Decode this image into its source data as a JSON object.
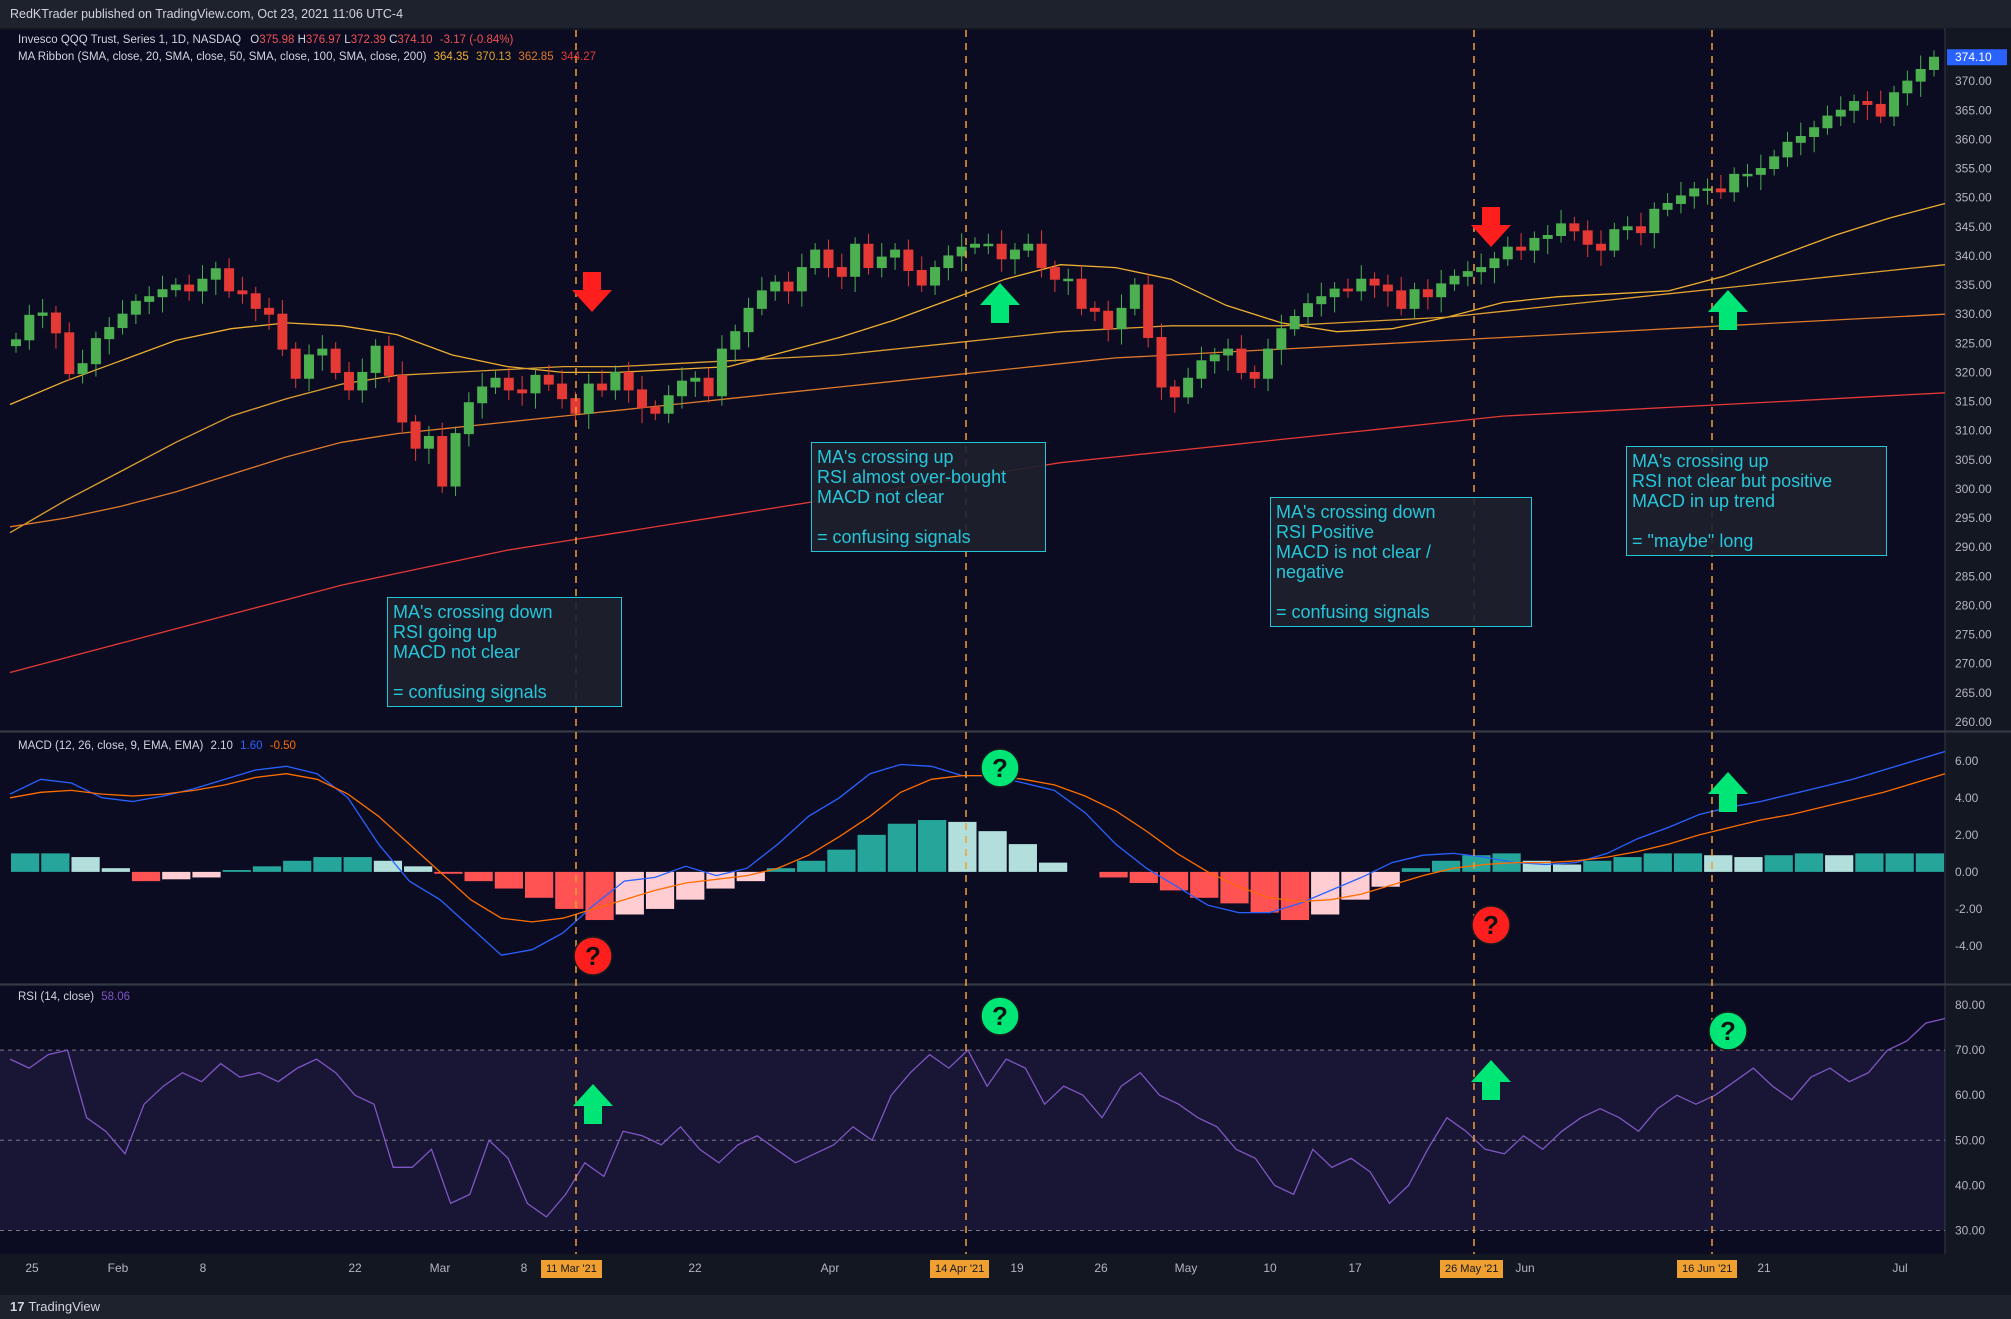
{
  "header": {
    "publisher": "RedKTrader published on TradingView.com, Oct 23, 2021 11:06 UTC-4"
  },
  "footer": {
    "brand": "TradingView"
  },
  "legend": {
    "main": {
      "title": "Invesco QQQ Trust, Series 1, 1D, NASDAQ",
      "o_label": "O",
      "o": "375.98",
      "h_label": "H",
      "h": "376.97",
      "l_label": "L",
      "l": "372.39",
      "c_label": "C",
      "c": "374.10",
      "chg": "-3.17 (-0.84%)"
    },
    "ribbon": {
      "title": "MA Ribbon (SMA, close, 20, SMA, close, 50, SMA, close, 100, SMA, close, 200)",
      "v1": "364.35",
      "v2": "370.13",
      "v3": "362.85",
      "v4": "344.27"
    },
    "macd": {
      "title": "MACD (12, 26, close, 9, EMA, EMA)",
      "hist": "2.10",
      "macd": "1.60",
      "signal": "-0.50"
    },
    "rsi": {
      "title": "RSI (14, close)",
      "value": "58.06"
    }
  },
  "notes": [
    {
      "text": "MA's crossing down\nRSI going up\nMACD not clear\n\n= confusing signals"
    },
    {
      "text": "MA's crossing up\nRSI almost over-bought\nMACD not clear\n\n= confusing signals"
    },
    {
      "text": "MA's crossing down\nRSI Positive\nMACD is not clear /\nnegative\n\n= confusing signals"
    },
    {
      "text": "MA's crossing up\nRSI not clear but positive\nMACD in up trend\n\n= \"maybe\" long"
    }
  ],
  "date_badges": [
    "11 Mar '21",
    "14 Apr '21",
    "26 May '21",
    "16 Jun '21"
  ],
  "colors": {
    "bull": "#4caf50",
    "bear": "#e53935",
    "ma20": "#f0b030",
    "ma50": "#e0a030",
    "ma100": "#e07a2a",
    "ma200": "#e53935",
    "macd": "#2962ff",
    "signal": "#ff6d00",
    "rsi": "#7e57c2",
    "note": "#26c6da",
    "vline": "#f0a030"
  },
  "chart_data": [
    {
      "type": "candlestick",
      "name": "Invesco QQQ Trust, Series 1, 1D, NASDAQ",
      "ylim": [
        260,
        375
      ],
      "y_ticks": [
        "260.00",
        "265.00",
        "270.00",
        "275.00",
        "280.00",
        "285.00",
        "290.00",
        "295.00",
        "300.00",
        "305.00",
        "310.00",
        "315.00",
        "320.00",
        "325.00",
        "330.00",
        "335.00",
        "340.00",
        "345.00",
        "350.00",
        "355.00",
        "360.00",
        "365.00",
        "370.00"
      ],
      "price_tag": "374.10",
      "x_tick_labels": [
        "25",
        "Feb",
        "8",
        "22",
        "Mar",
        "8",
        "22",
        "Apr",
        "19",
        "26",
        "May",
        "10",
        "17",
        "Jun",
        "21",
        "Jul"
      ],
      "closes": [
        325.6,
        329.8,
        330.2,
        326.8,
        319.8,
        321.5,
        325.8,
        327.7,
        330.0,
        332.2,
        333.0,
        334.2,
        335.0,
        334.0,
        336.0,
        337.8,
        334.0,
        333.5,
        331.0,
        330.0,
        324.0,
        319.0,
        323.0,
        324.0,
        320.0,
        317.0,
        320.0,
        324.5,
        319.5,
        311.5,
        307.0,
        309.0,
        300.5,
        309.5,
        314.8,
        317.5,
        319.0,
        317.0,
        316.5,
        319.5,
        318.0,
        315.5,
        313.0,
        318.0,
        317.0,
        320.0,
        317.0,
        314.0,
        313.0,
        316.0,
        318.5,
        319.0,
        316.0,
        324.0,
        327.0,
        331.0,
        334.0,
        335.5,
        334.0,
        338.0,
        341.0,
        338.0,
        336.5,
        342.0,
        338.0,
        339.8,
        341.0,
        337.5,
        335.0,
        338.0,
        340.0,
        341.5,
        342.0,
        342.0,
        339.5,
        341.0,
        342.0,
        338.0,
        336.0,
        336.0,
        331.0,
        330.5,
        327.5,
        331.0,
        335.0,
        326.0,
        317.5,
        315.8,
        319.0,
        322.0,
        323.0,
        324.0,
        320.0,
        319.0,
        324.0,
        327.5,
        329.6,
        331.8,
        333.0,
        334.3,
        334.0,
        336.0,
        335.0,
        334.0,
        331.0,
        334.2,
        333.0,
        335.2,
        336.5,
        337.3,
        338.0,
        339.5,
        341.5,
        341.0,
        343.0,
        343.5,
        345.5,
        344.3,
        342.0,
        341.0,
        344.5,
        345.0,
        344.0,
        348.0,
        349.0,
        350.3,
        351.5,
        351.5,
        351.0,
        354.0,
        354.0,
        355.0,
        357.0,
        359.5,
        360.5,
        362.0,
        364.0,
        365.0,
        366.5,
        366.0,
        364.0,
        368.0,
        370.0,
        372.0,
        374.1
      ]
    },
    {
      "type": "line",
      "name": "MA Ribbon",
      "series": [
        {
          "name": "SMA 20",
          "values": [
            314.5,
            318.5,
            322.0,
            325.5,
            327.5,
            328.5,
            328.0,
            326.5,
            323.0,
            321.0,
            320.0,
            320.0,
            320.5,
            321.0,
            323.5,
            326.0,
            329.0,
            332.5,
            336.0,
            338.5,
            338.0,
            336.0,
            331.5,
            328.5,
            327.0,
            327.5,
            329.5,
            332.0,
            333.0,
            333.5,
            334.0,
            336.5,
            340.0,
            343.5,
            346.5,
            349.0
          ]
        },
        {
          "name": "SMA 50",
          "values": [
            292.5,
            298.0,
            303.0,
            308.0,
            312.5,
            315.5,
            318.0,
            319.5,
            320.0,
            320.5,
            321.0,
            321.0,
            321.5,
            322.0,
            322.5,
            323.0,
            324.0,
            325.0,
            326.0,
            327.0,
            327.5,
            328.0,
            328.0,
            328.0,
            328.5,
            329.0,
            329.5,
            330.5,
            331.5,
            332.5,
            333.5,
            334.5,
            335.5,
            336.5,
            337.5,
            338.5
          ]
        },
        {
          "name": "SMA 100",
          "values": [
            293.5,
            295.0,
            297.0,
            299.5,
            302.5,
            305.5,
            308.0,
            309.5,
            310.5,
            311.5,
            312.5,
            313.5,
            314.5,
            315.5,
            316.5,
            317.5,
            318.5,
            319.5,
            320.5,
            321.5,
            322.5,
            323.0,
            323.5,
            324.0,
            324.5,
            325.0,
            325.5,
            326.0,
            326.5,
            327.0,
            327.5,
            328.0,
            328.5,
            329.0,
            329.5,
            330.0
          ]
        },
        {
          "name": "SMA 200",
          "values": [
            268.5,
            271.0,
            273.5,
            276.0,
            278.5,
            281.0,
            283.5,
            285.5,
            287.5,
            289.5,
            291.0,
            292.5,
            294.0,
            295.5,
            297.0,
            298.5,
            300.0,
            301.5,
            303.0,
            304.5,
            305.5,
            306.5,
            307.5,
            308.5,
            309.5,
            310.5,
            311.5,
            312.5,
            313.0,
            313.5,
            314.0,
            314.5,
            315.0,
            315.5,
            316.0,
            316.5
          ]
        }
      ]
    },
    {
      "type": "line",
      "name": "MACD (12, 26, close, 9, EMA, EMA)",
      "ylim": [
        -6,
        7.5
      ],
      "y_ticks": [
        "-4.00",
        "-2.00",
        "0.00",
        "2.00",
        "4.00",
        "6.00"
      ],
      "series": [
        {
          "name": "MACD",
          "values": [
            4.2,
            5.0,
            4.8,
            4.0,
            3.8,
            4.1,
            4.5,
            5.0,
            5.5,
            5.7,
            5.3,
            4.0,
            1.5,
            -0.5,
            -1.5,
            -3.0,
            -4.5,
            -4.2,
            -3.3,
            -1.8,
            -0.5,
            -0.3,
            0.3,
            -0.2,
            0.2,
            1.5,
            3.0,
            4.0,
            5.3,
            5.8,
            5.7,
            5.2,
            5.2,
            4.8,
            4.4,
            3.2,
            1.5,
            0.2,
            -0.8,
            -1.8,
            -2.2,
            -2.2,
            -1.7,
            -1.0,
            -0.3,
            0.5,
            0.9,
            1.0,
            0.8,
            0.5,
            0.4,
            0.5,
            1.0,
            1.8,
            2.4,
            3.1,
            3.5,
            3.8,
            4.2,
            4.6,
            5.0,
            5.5,
            6.0,
            6.5
          ]
        },
        {
          "name": "Signal",
          "values": [
            4.0,
            4.3,
            4.4,
            4.2,
            4.1,
            4.2,
            4.4,
            4.7,
            5.1,
            5.3,
            5.0,
            4.2,
            3.0,
            1.5,
            0.0,
            -1.5,
            -2.5,
            -2.7,
            -2.5,
            -2.0,
            -1.5,
            -1.0,
            -0.6,
            -0.4,
            -0.2,
            0.2,
            0.9,
            1.9,
            3.0,
            4.3,
            5.0,
            5.2,
            5.2,
            5.0,
            4.7,
            4.1,
            3.3,
            2.2,
            1.0,
            0.0,
            -0.8,
            -1.4,
            -1.6,
            -1.5,
            -1.2,
            -0.7,
            -0.2,
            0.2,
            0.4,
            0.5,
            0.5,
            0.6,
            0.8,
            1.1,
            1.5,
            2.0,
            2.4,
            2.8,
            3.1,
            3.5,
            3.9,
            4.3,
            4.8,
            5.3
          ]
        }
      ]
    },
    {
      "type": "bar",
      "name": "MACD Histogram",
      "values": [
        1.0,
        1.0,
        0.8,
        0.2,
        -0.5,
        -0.4,
        -0.3,
        0.1,
        0.3,
        0.6,
        0.8,
        0.8,
        0.6,
        0.3,
        -0.1,
        -0.5,
        -0.9,
        -1.4,
        -2.0,
        -2.6,
        -2.3,
        -2.0,
        -1.5,
        -0.9,
        -0.5,
        0.2,
        0.6,
        1.2,
        2.0,
        2.6,
        2.8,
        2.7,
        2.2,
        1.5,
        0.5,
        0.0,
        -0.3,
        -0.6,
        -1.0,
        -1.4,
        -1.7,
        -2.2,
        -2.6,
        -2.3,
        -1.5,
        -0.8,
        0.2,
        0.6,
        0.9,
        1.0,
        0.6,
        0.4,
        0.6,
        0.8,
        1.0,
        1.0,
        0.9,
        0.8,
        0.9,
        1.0,
        0.9,
        1.0,
        1.0,
        1.0
      ]
    },
    {
      "type": "line",
      "name": "RSI (14, close)",
      "ylim": [
        27,
        82
      ],
      "y_ticks": [
        "30.00",
        "40.00",
        "50.00",
        "60.00",
        "70.00",
        "80.00"
      ],
      "bands": [
        30,
        50,
        70
      ],
      "values": [
        68,
        66,
        69,
        70,
        55,
        52,
        47,
        58,
        62,
        65,
        63,
        67,
        64,
        65,
        63,
        66,
        68,
        65,
        60,
        58,
        44,
        44,
        48,
        36,
        38,
        50,
        46,
        36,
        33,
        38,
        45,
        42,
        52,
        51,
        49,
        53,
        48,
        45,
        49,
        51,
        48,
        45,
        47,
        49,
        53,
        50,
        60,
        65,
        69,
        66,
        70,
        62,
        68,
        66,
        58,
        62,
        60,
        55,
        62,
        65,
        60,
        58,
        55,
        53,
        48,
        46,
        40,
        38,
        48,
        44,
        46,
        43,
        36,
        40,
        48,
        55,
        52,
        48,
        47,
        51,
        48,
        52,
        55,
        57,
        55,
        52,
        57,
        60,
        58,
        60,
        63,
        66,
        62,
        59,
        64,
        66,
        63,
        65,
        70,
        72,
        76,
        77
      ]
    }
  ]
}
